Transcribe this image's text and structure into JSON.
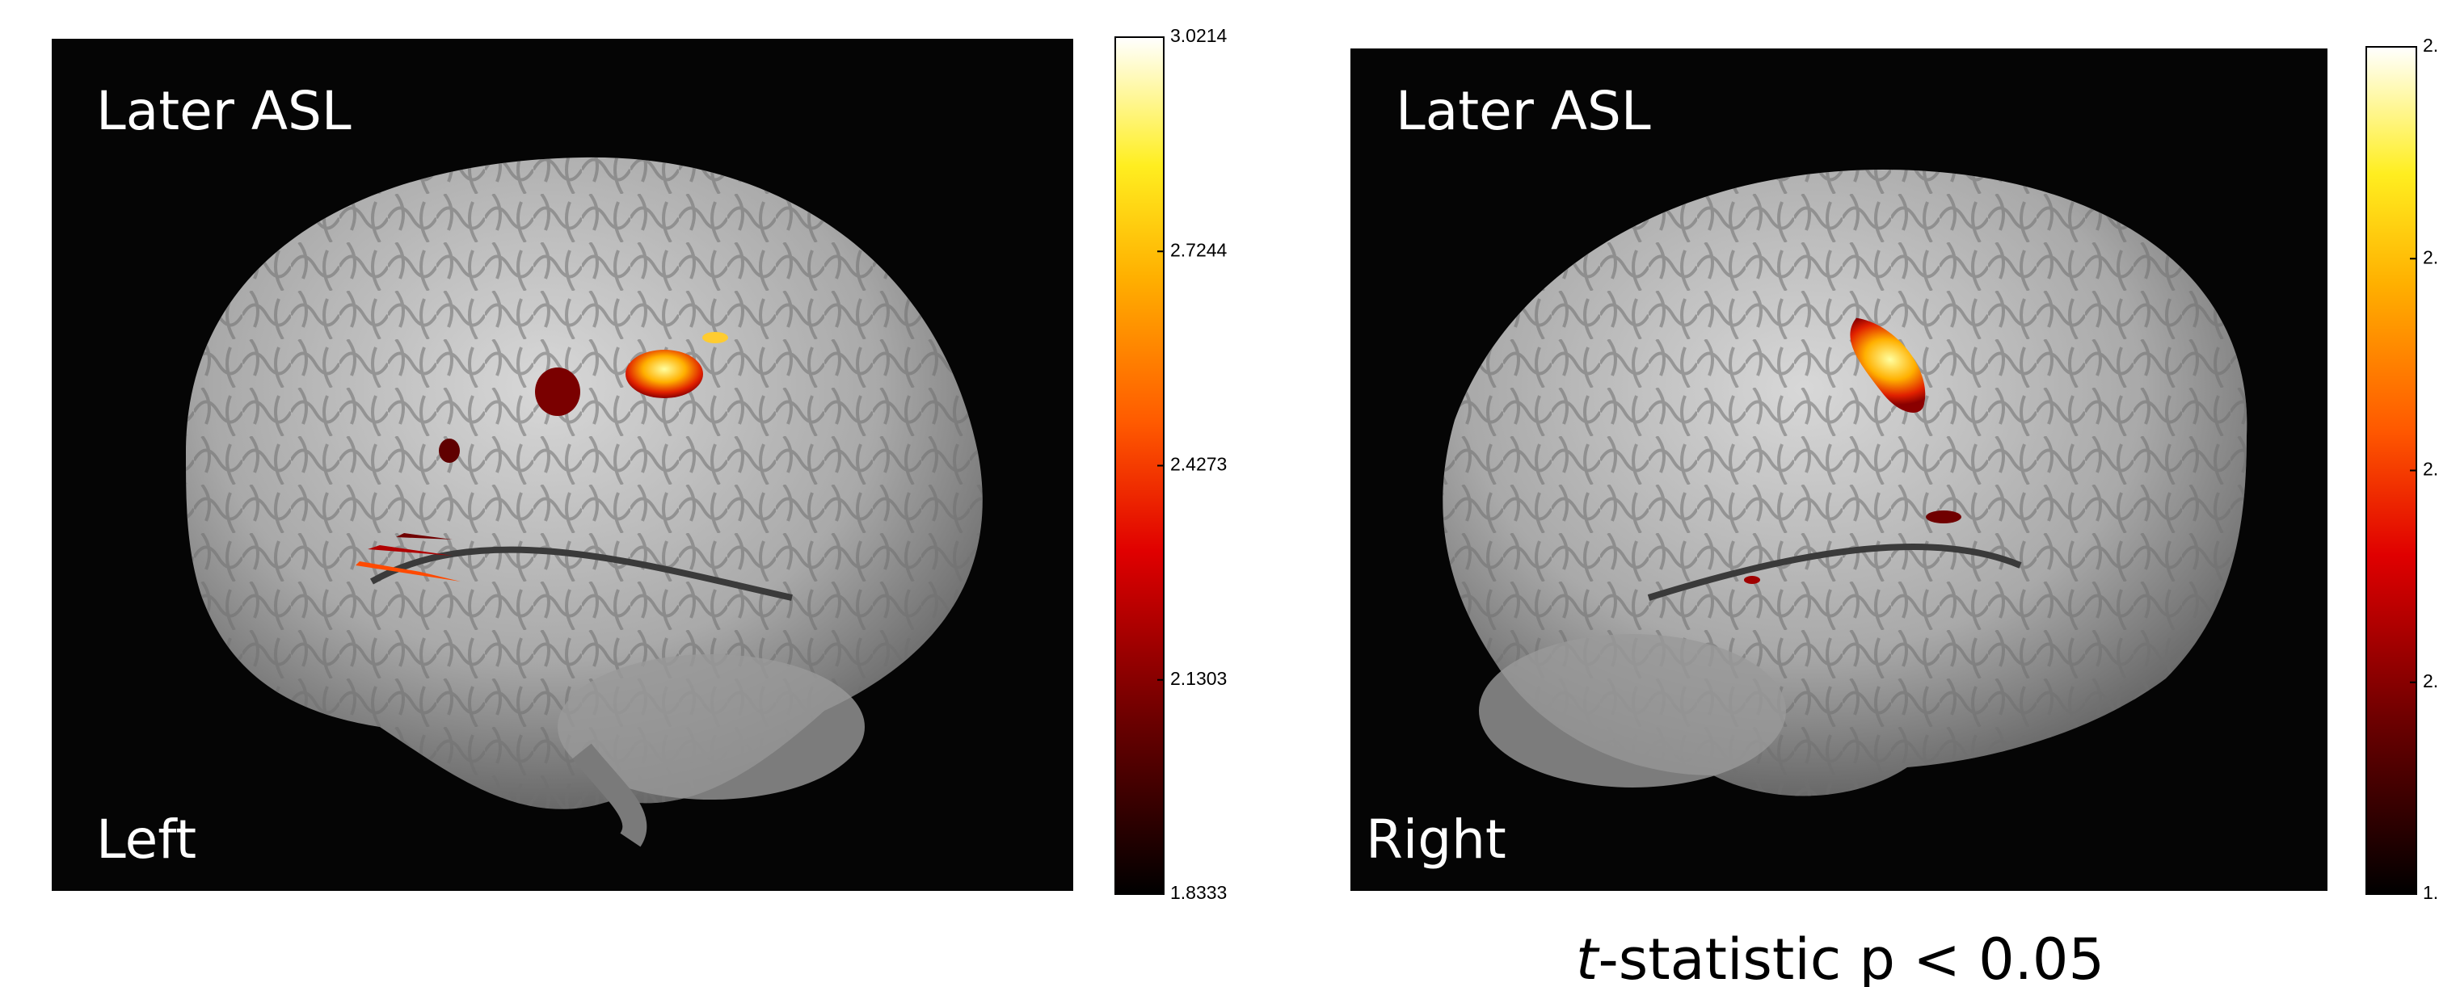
{
  "panels": [
    {
      "title": "Later ASL",
      "side": "Left",
      "colorbar": {
        "ticks": [
          "3.0214",
          "2.7244",
          "2.4273",
          "2.1303",
          "1.8333"
        ]
      }
    },
    {
      "title": "Later ASL",
      "side": "Right",
      "colorbar": {
        "ticks": [
          "2.",
          "2.",
          "2.",
          "2.",
          "1."
        ]
      }
    }
  ],
  "caption": {
    "italic": "t",
    "text": "-statistic p < 0.05"
  }
}
